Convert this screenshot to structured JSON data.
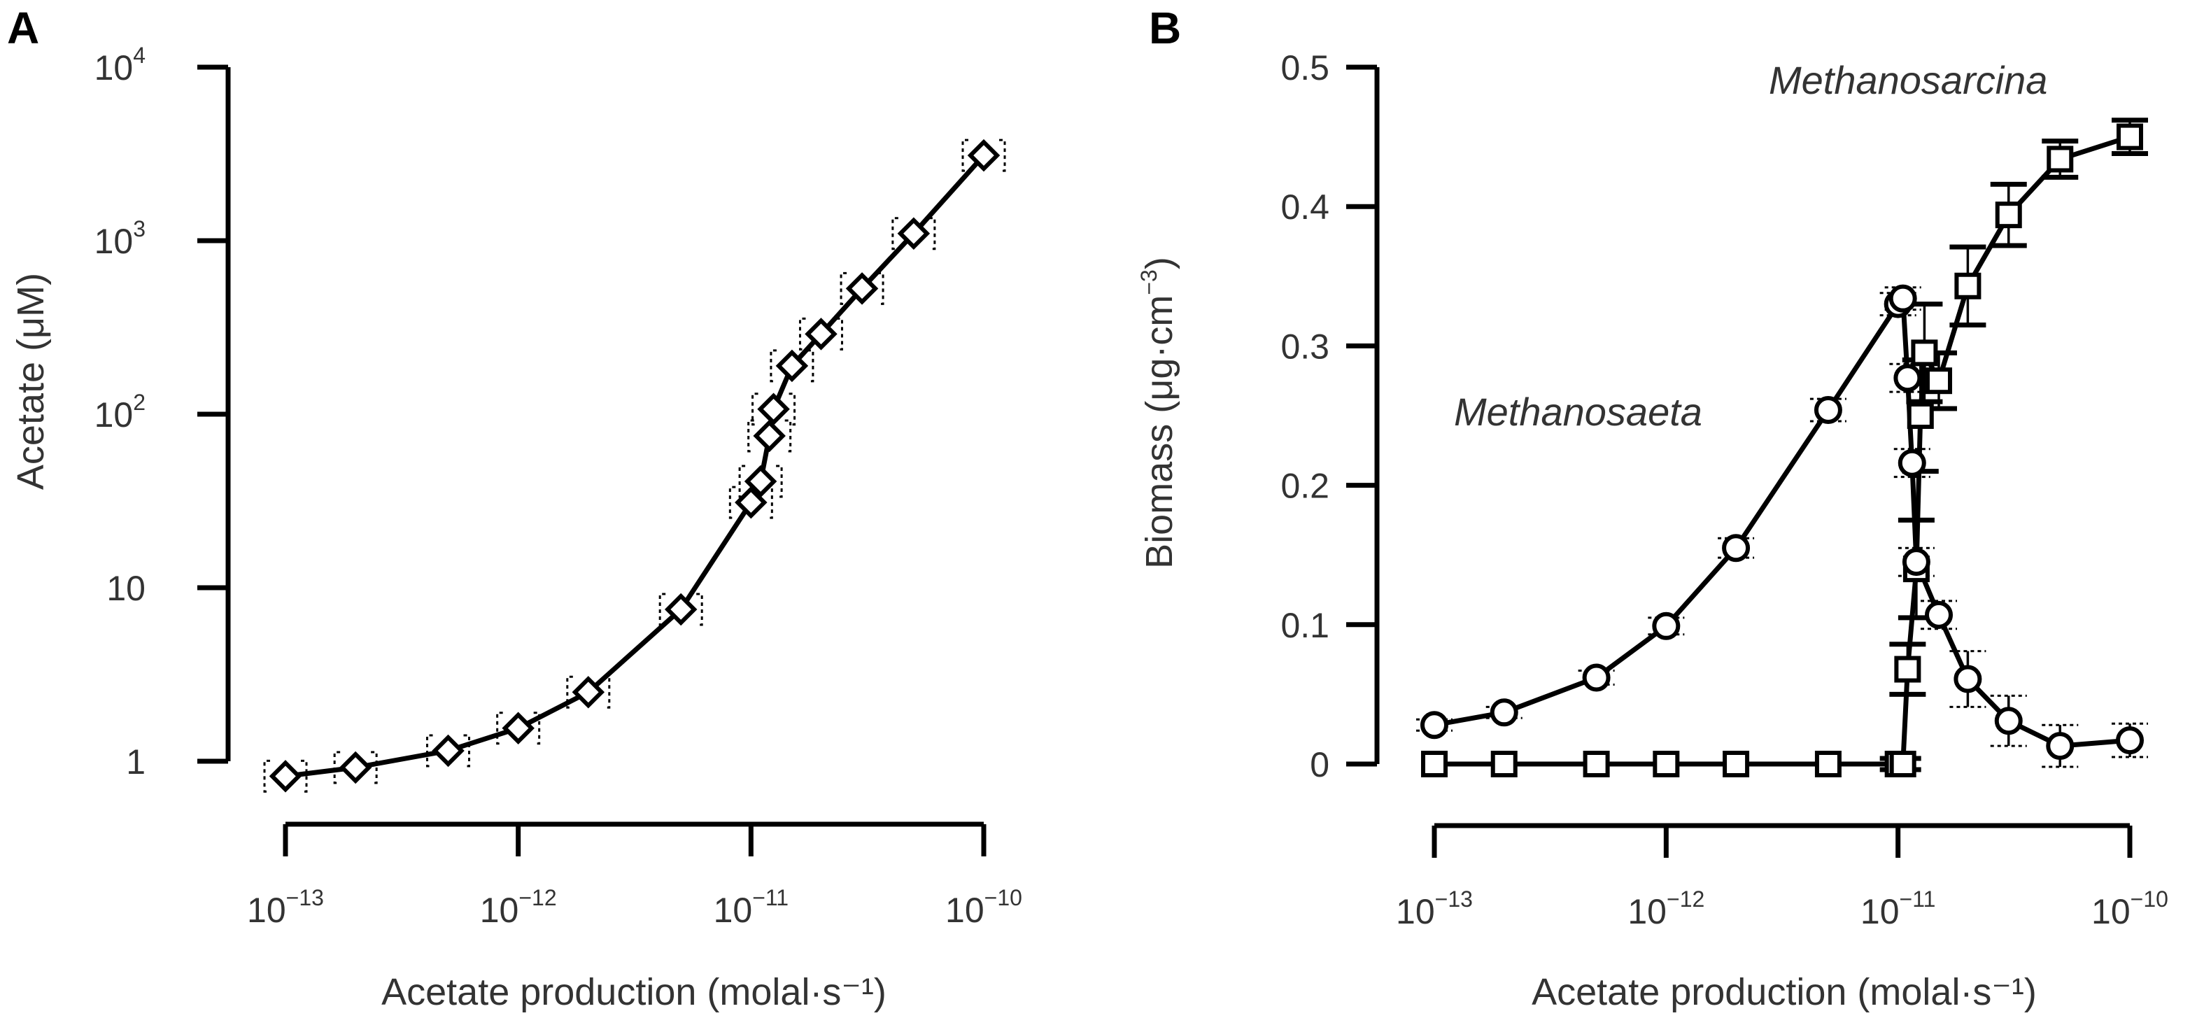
{
  "chart_data": [
    {
      "panel": "A",
      "type": "line",
      "title": "",
      "xlabel": "Acetate production (molal·s⁻¹)",
      "ylabel": "Acetate (μM)",
      "xscale": "log",
      "yscale": "log",
      "xlim": [
        1e-13,
        1e-10
      ],
      "ylim": [
        1,
        10000
      ],
      "xticks": [
        {
          "value": 1e-13,
          "base": "10",
          "exp": "−13"
        },
        {
          "value": 1e-12,
          "base": "10",
          "exp": "−12"
        },
        {
          "value": 1e-11,
          "base": "10",
          "exp": "−11"
        },
        {
          "value": 1e-10,
          "base": "10",
          "exp": "−10"
        }
      ],
      "yticks": [
        {
          "value": 1,
          "base": "1",
          "exp": ""
        },
        {
          "value": 10,
          "base": "10",
          "exp": ""
        },
        {
          "value": 100,
          "base": "10",
          "exp": "2"
        },
        {
          "value": 1000,
          "base": "10",
          "exp": "3"
        },
        {
          "value": 10000,
          "base": "10",
          "exp": "4"
        }
      ],
      "series": [
        {
          "name": "Acetate",
          "marker": "diamond",
          "x": [
            1e-13,
            2e-13,
            5e-13,
            1e-12,
            2e-12,
            5e-12,
            1e-11,
            1.1e-11,
            1.2e-11,
            1.25e-11,
            1.5e-11,
            2e-11,
            3e-11,
            5e-11,
            1e-10
          ],
          "y": [
            0.82,
            0.92,
            1.15,
            1.55,
            2.5,
            7.5,
            31,
            41,
            75,
            107,
            190,
            290,
            530,
            1100,
            3100
          ]
        }
      ]
    },
    {
      "panel": "B",
      "type": "line",
      "title": "",
      "xlabel": "Acetate production (molal·s⁻¹)",
      "ylabel_prefix": "Biomass (μg·cm",
      "ylabel_sup": "−3",
      "ylabel_suffix": ")",
      "xscale": "log",
      "yscale": "linear",
      "xlim": [
        1e-13,
        1e-10
      ],
      "ylim": [
        0,
        0.5
      ],
      "xticks": [
        {
          "value": 1e-13,
          "base": "10",
          "exp": "−13"
        },
        {
          "value": 1e-12,
          "base": "10",
          "exp": "−12"
        },
        {
          "value": 1e-11,
          "base": "10",
          "exp": "−11"
        },
        {
          "value": 1e-10,
          "base": "10",
          "exp": "−10"
        }
      ],
      "yticks": [
        {
          "value": 0,
          "label": "0"
        },
        {
          "value": 0.1,
          "label": "0.1"
        },
        {
          "value": 0.2,
          "label": "0.2"
        },
        {
          "value": 0.3,
          "label": "0.3"
        },
        {
          "value": 0.4,
          "label": "0.4"
        },
        {
          "value": 0.5,
          "label": "0.5"
        }
      ],
      "series": [
        {
          "name": "Methanosaeta",
          "marker": "circle",
          "x": [
            1e-13,
            2e-13,
            5e-13,
            1e-12,
            2e-12,
            5e-12,
            1e-11,
            1.05e-11,
            1.1e-11,
            1.15e-11,
            1.2e-11,
            1.5e-11,
            2e-11,
            3e-11,
            5e-11,
            1e-10
          ],
          "y": [
            0.028,
            0.037,
            0.062,
            0.099,
            0.155,
            0.254,
            0.33,
            0.334,
            0.277,
            0.216,
            0.145,
            0.107,
            0.061,
            0.031,
            0.013,
            0.017
          ],
          "yerr": [
            0.004,
            0.004,
            0.005,
            0.006,
            0.007,
            0.008,
            0.008,
            0.008,
            0.01,
            0.01,
            0.01,
            0.01,
            0.02,
            0.018,
            0.015,
            0.012
          ]
        },
        {
          "name": "Methanosarcina",
          "marker": "square",
          "x": [
            1e-13,
            2e-13,
            5e-13,
            1e-12,
            2e-12,
            5e-12,
            1e-11,
            1.05e-11,
            1.1e-11,
            1.2e-11,
            1.25e-11,
            1.3e-11,
            1.5e-11,
            2e-11,
            3e-11,
            5e-11,
            1e-10
          ],
          "y": [
            0.0,
            0.0,
            0.0,
            0.0,
            0.0,
            0.0,
            0.0,
            0.0,
            0.068,
            0.14,
            0.25,
            0.295,
            0.275,
            0.343,
            0.394,
            0.434,
            0.45
          ],
          "yerr": [
            0.0,
            0.0,
            0.0,
            0.0,
            0.0,
            0.0,
            0.004,
            0.004,
            0.018,
            0.035,
            0.04,
            0.035,
            0.02,
            0.028,
            0.022,
            0.013,
            0.012
          ]
        }
      ],
      "annotations": [
        "Methanosaeta",
        "Methanosarcina"
      ]
    }
  ]
}
